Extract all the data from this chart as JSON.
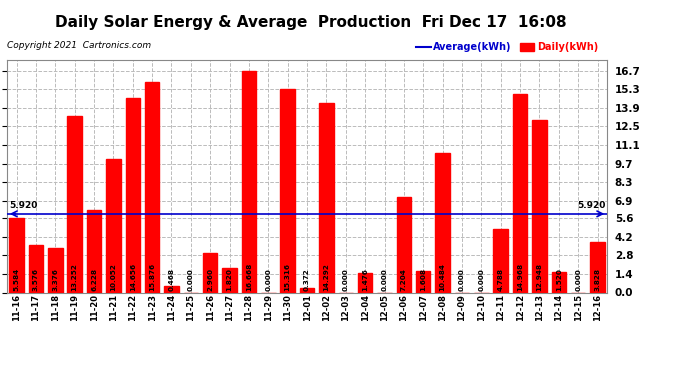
{
  "title": "Daily Solar Energy & Average  Production  Fri Dec 17  16:08",
  "copyright": "Copyright 2021  Cartronics.com",
  "categories": [
    "11-16",
    "11-17",
    "11-18",
    "11-19",
    "11-20",
    "11-21",
    "11-22",
    "11-23",
    "11-24",
    "11-25",
    "11-26",
    "11-27",
    "11-28",
    "11-29",
    "11-30",
    "12-01",
    "12-02",
    "12-03",
    "12-04",
    "12-05",
    "12-06",
    "12-07",
    "12-08",
    "12-09",
    "12-10",
    "12-11",
    "12-12",
    "12-13",
    "12-14",
    "12-15",
    "12-16"
  ],
  "values": [
    5.584,
    3.576,
    3.376,
    13.252,
    6.228,
    10.052,
    14.656,
    15.876,
    0.468,
    0.0,
    2.96,
    1.82,
    16.668,
    0.0,
    15.316,
    0.372,
    14.292,
    0.0,
    1.476,
    0.0,
    7.204,
    1.608,
    10.484,
    0.0,
    0.0,
    4.788,
    14.968,
    12.948,
    1.52,
    0.0,
    3.828
  ],
  "average": 5.92,
  "bar_color": "#ff0000",
  "avg_line_color": "#0000cc",
  "background_color": "#ffffff",
  "plot_bg_color": "#ffffff",
  "grid_color": "#bbbbbb",
  "title_fontsize": 11,
  "ytick_values": [
    0.0,
    1.4,
    2.8,
    4.2,
    5.6,
    6.9,
    8.3,
    9.7,
    11.1,
    12.5,
    13.9,
    15.3,
    16.7
  ],
  "legend_avg_label": "Average(kWh)",
  "legend_daily_label": "Daily(kWh)",
  "avg_label": "5.920"
}
